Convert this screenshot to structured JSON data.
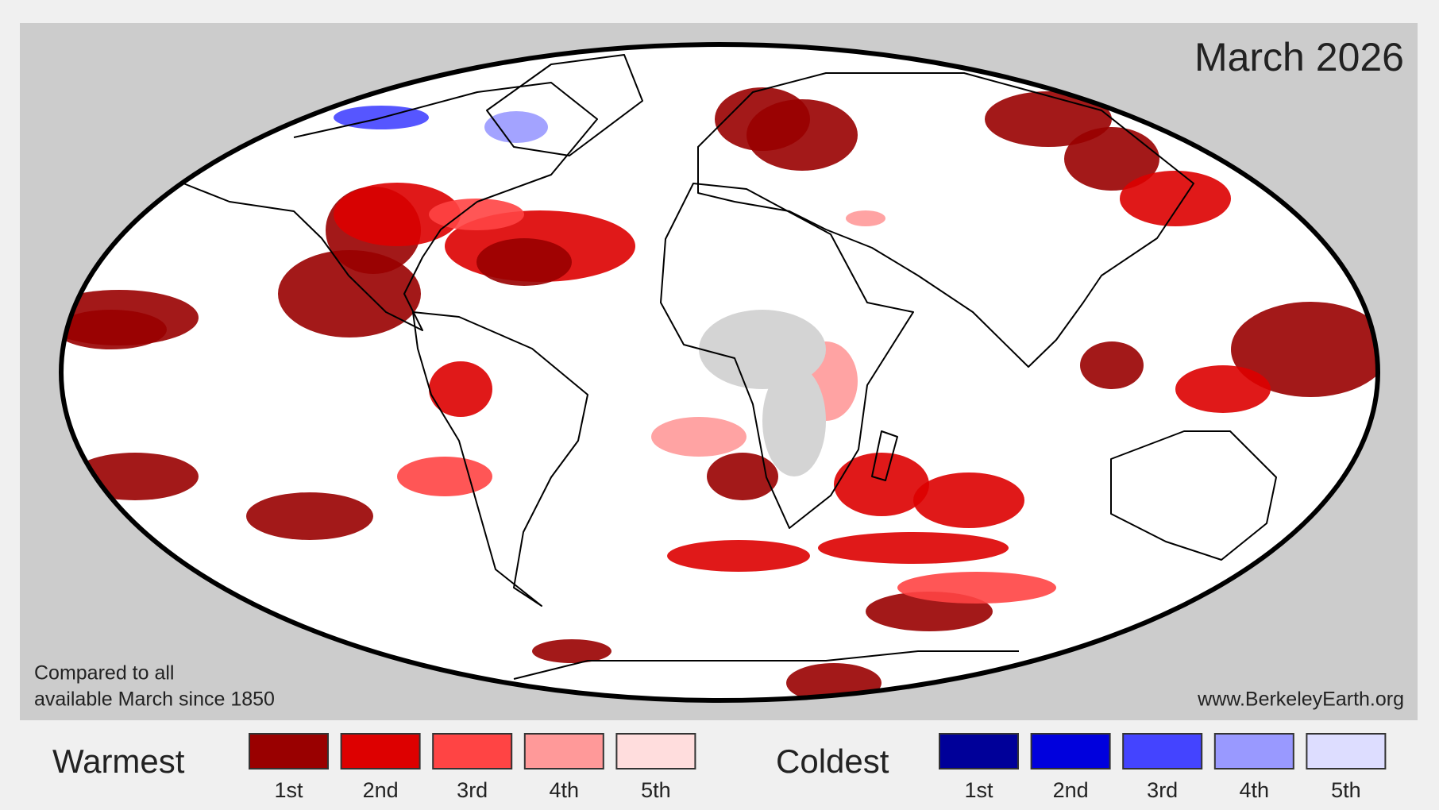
{
  "title": "March 2026",
  "note": [
    "Compared to all",
    "available March since 1850"
  ],
  "source": "www.BerkeleyEarth.org",
  "legend": {
    "warm": {
      "label": "Warmest",
      "items": [
        {
          "label": "1st",
          "color": "#990000"
        },
        {
          "label": "2nd",
          "color": "#dd0000"
        },
        {
          "label": "3rd",
          "color": "#ff4444"
        },
        {
          "label": "4th",
          "color": "#ff9999"
        },
        {
          "label": "5th",
          "color": "#ffdddd"
        }
      ]
    },
    "cold": {
      "label": "Coldest",
      "items": [
        {
          "label": "1st",
          "color": "#000099"
        },
        {
          "label": "2nd",
          "color": "#0000dd"
        },
        {
          "label": "3rd",
          "color": "#4444ff"
        },
        {
          "label": "4th",
          "color": "#9999ff"
        },
        {
          "label": "5th",
          "color": "#ddddff"
        }
      ]
    }
  }
}
